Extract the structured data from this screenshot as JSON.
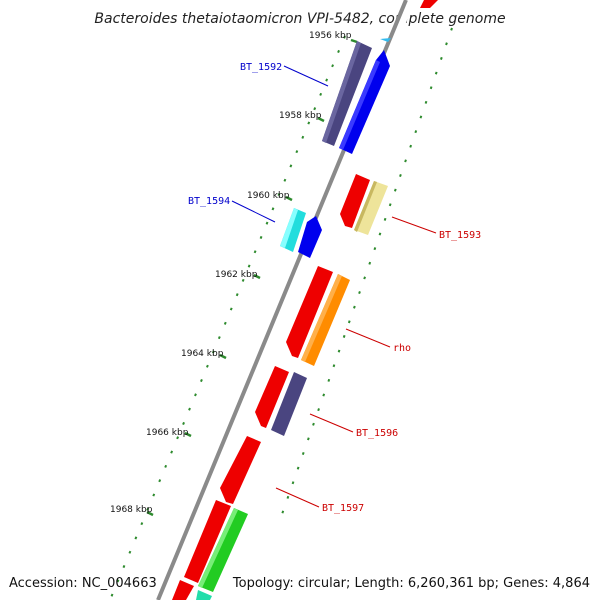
{
  "title": "Bacteroides thetaiotaomicron VPI-5482, complete genome",
  "footer": {
    "accession": "Accession: NC_004663",
    "topology": "Topology: circular; Length: 6,260,361 bp; Genes: 4,864"
  },
  "colors": {
    "backbone": "#8a8a8a",
    "tick": "#2e8b2e",
    "forward_label": "#0000cc",
    "reverse_label": "#cc0000"
  },
  "ticks": [
    {
      "label": "1956 kbp"
    },
    {
      "label": "1958 kbp"
    },
    {
      "label": "1960 kbp"
    },
    {
      "label": "1962 kbp"
    },
    {
      "label": "1964 kbp"
    },
    {
      "label": "1966 kbp"
    },
    {
      "label": "1968 kbp"
    }
  ],
  "labeled_genes": [
    {
      "name": "BT_1592",
      "strand": "forward"
    },
    {
      "name": "BT_1594",
      "strand": "forward"
    },
    {
      "name": "BT_1593",
      "strand": "reverse"
    },
    {
      "name": "rho",
      "strand": "reverse"
    },
    {
      "name": "BT_1596",
      "strand": "reverse"
    },
    {
      "name": "BT_1597",
      "strand": "reverse"
    }
  ]
}
